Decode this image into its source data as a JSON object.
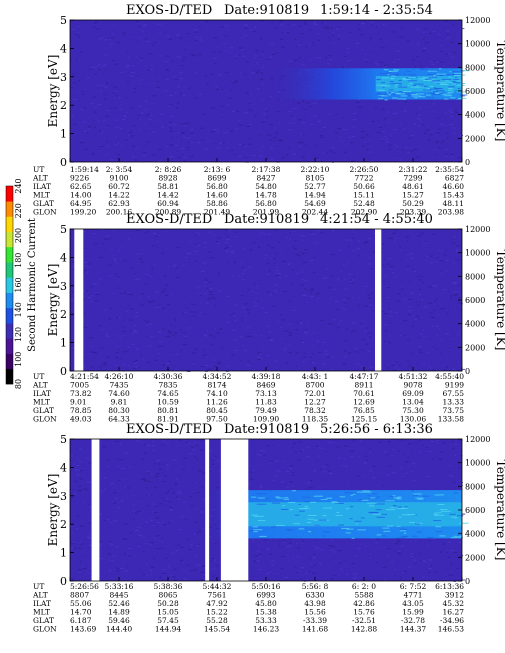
{
  "colorbar": {
    "label": "Second Harmonic Current",
    "ticks": [
      "80",
      "100",
      "120",
      "140",
      "160",
      "180",
      "200",
      "220",
      "240"
    ],
    "colors": [
      "#000000",
      "#3a0066",
      "#4b1496",
      "#3d2db4",
      "#1e50e6",
      "#1e8cf0",
      "#28c8e6",
      "#1ec878",
      "#32e632",
      "#c8e632",
      "#ffd700",
      "#ff8c00",
      "#ff0000"
    ]
  },
  "chart_data": [
    {
      "type": "heatmap",
      "title": "EXOS-D/TED",
      "date_label": "Date:910819",
      "time_range": "1:59:14 - 2:35:54",
      "ylabel": "Energy [eV]",
      "y2label": "Temperature [K]",
      "ylim": [
        0,
        5
      ],
      "y_ticks": [
        "0",
        "1",
        "2",
        "3",
        "4",
        "5"
      ],
      "y2lim": [
        0,
        12000
      ],
      "y2_ticks": [
        "0",
        "2000",
        "4000",
        "6000",
        "8000",
        "10000",
        "12000"
      ],
      "band": {
        "x_start": 0.5,
        "x_end": 1.0,
        "e_low": 2.2,
        "e_high": 3.3,
        "peak_start": 0.78
      },
      "gaps": [],
      "table": {
        "labels": [
          "UT",
          "ALT",
          "ILAT",
          "MLT",
          "GLAT",
          "GLON"
        ],
        "columns": [
          [
            "1:59:14",
            "9226",
            "62.65",
            "14.00",
            "64.95",
            "199.20"
          ],
          [
            "2: 3:54",
            "9100",
            "60.72",
            "14.22",
            "62.93",
            "200.16"
          ],
          [
            "2: 8:26",
            "8928",
            "58.81",
            "14.42",
            "60.94",
            "200.89"
          ],
          [
            "2:13: 6",
            "8699",
            "56.80",
            "14.60",
            "58.86",
            "201.49"
          ],
          [
            "2:17:38",
            "8427",
            "54.80",
            "14.78",
            "56.80",
            "201.99"
          ],
          [
            "2:22:10",
            "8105",
            "52.77",
            "14.94",
            "54.69",
            "202.44"
          ],
          [
            "2:26:50",
            "7722",
            "50.66",
            "15.11",
            "52.48",
            "202.90"
          ],
          [
            "2:31:22",
            "7299",
            "48.61",
            "15.27",
            "50.29",
            "203.39"
          ],
          [
            "2:35:54",
            "6827",
            "46.60",
            "15.43",
            "48.11",
            "203.98"
          ]
        ]
      }
    },
    {
      "type": "heatmap",
      "title": "EXOS-D/TED",
      "date_label": "Date:910819",
      "time_range": "4:21:54 - 4:55:40",
      "ylabel": "Energy [eV]",
      "y2label": "Temperature [K]",
      "ylim": [
        0,
        5
      ],
      "y_ticks": [
        "0",
        "1",
        "2",
        "3",
        "4",
        "5"
      ],
      "y2lim": [
        0,
        12000
      ],
      "y2_ticks": [
        "0",
        "2000",
        "4000",
        "6000",
        "8000",
        "10000",
        "12000"
      ],
      "band": null,
      "gaps": [
        [
          0.011,
          0.034
        ],
        [
          0.778,
          0.794
        ]
      ],
      "table": {
        "labels": [
          "UT",
          "ALT",
          "ILAT",
          "MLT",
          "GLAT",
          "GLON"
        ],
        "columns": [
          [
            "4:21:54",
            "7005",
            "73.82",
            "9.01",
            "78.85",
            "49.03"
          ],
          [
            "4:26:10",
            "7435",
            "74.60",
            "9.81",
            "80.30",
            "64.33"
          ],
          [
            "4:30:36",
            "7835",
            "74.65",
            "10.59",
            "80.81",
            "81.91"
          ],
          [
            "4:34:52",
            "8174",
            "74.10",
            "11.26",
            "80.45",
            "97.50"
          ],
          [
            "4:39:18",
            "8469",
            "73.13",
            "11.83",
            "79.49",
            "109.90"
          ],
          [
            "4:43: 1",
            "8700",
            "72.01",
            "12.27",
            "78.32",
            "118.35"
          ],
          [
            "4:47:17",
            "8911",
            "70.61",
            "12.69",
            "76.85",
            "125.15"
          ],
          [
            "4:51:32",
            "9078",
            "69.09",
            "13.04",
            "75.30",
            "130.06"
          ],
          [
            "4:55:40",
            "9199",
            "67.55",
            "13.33",
            "73.75",
            "133.58"
          ]
        ]
      }
    },
    {
      "type": "heatmap",
      "title": "EXOS-D/TED",
      "date_label": "Date:910819",
      "time_range": "5:26:56 - 6:13:36",
      "ylabel": "Energy [eV]",
      "y2label": "Temperature [K]",
      "ylim": [
        0,
        5
      ],
      "y_ticks": [
        "0",
        "1",
        "2",
        "3",
        "4",
        "5"
      ],
      "y2lim": [
        0,
        12000
      ],
      "y2_ticks": [
        "0",
        "2000",
        "4000",
        "6000",
        "8000",
        "10000",
        "12000"
      ],
      "band": {
        "x_start": 0.36,
        "x_end": 1.0,
        "e_low": 1.5,
        "e_high": 3.2,
        "peak_start": 0.45
      },
      "gaps": [
        [
          0.055,
          0.075
        ],
        [
          0.345,
          0.355
        ],
        [
          0.385,
          0.455
        ]
      ],
      "table": {
        "labels": [
          "UT",
          "ALT",
          "ILAT",
          "MLT",
          "GLAT",
          "GLON"
        ],
        "columns": [
          [
            "5:26:56",
            "8807",
            "55.06",
            "14.70",
            "6.187",
            "143.69"
          ],
          [
            "5:33:16",
            "8445",
            "52.46",
            "14.89",
            "59.46",
            "144.40"
          ],
          [
            "5:38:36",
            "8065",
            "50.28",
            "15.05",
            "57.45",
            "144.94"
          ],
          [
            "5:44:32",
            "7561",
            "47.92",
            "15.22",
            "55.28",
            "145.54"
          ],
          [
            "5:50:16",
            "6993",
            "45.80",
            "15.38",
            "53.33",
            "146.23"
          ],
          [
            "5:56: 8",
            "6330",
            "43.98",
            "15.56",
            "-33.39",
            "141.68"
          ],
          [
            "6: 2: 0",
            "5588",
            "42.86",
            "15.76",
            "-32.51",
            "142.88"
          ],
          [
            "6: 7:52",
            "4771",
            "43.05",
            "15.99",
            "-32.78",
            "144.37"
          ],
          [
            "6:13:36",
            "3912",
            "45.32",
            "16.27",
            "-34.96",
            "146.53"
          ]
        ]
      }
    }
  ]
}
